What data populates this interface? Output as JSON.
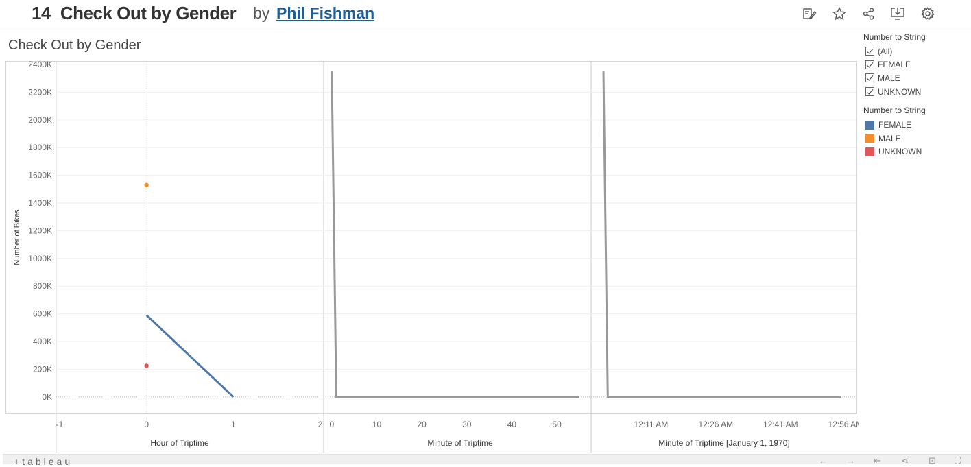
{
  "header": {
    "title": "14_Check Out by Gender",
    "by": "by",
    "author": "Phil Fishman"
  },
  "toolbar": {
    "icons": [
      "edit-icon",
      "star-icon",
      "share-icon",
      "download-icon",
      "settings-icon"
    ]
  },
  "sheet": {
    "title": "Check Out by Gender"
  },
  "filter": {
    "title": "Number to String",
    "items": [
      {
        "label": "(All)",
        "checked": true
      },
      {
        "label": "FEMALE",
        "checked": true
      },
      {
        "label": "MALE",
        "checked": true
      },
      {
        "label": "UNKNOWN",
        "checked": true
      }
    ]
  },
  "color_legend": {
    "title": "Number to String",
    "items": [
      {
        "label": "FEMALE",
        "color": "#4e79a7"
      },
      {
        "label": "MALE",
        "color": "#f28e2b"
      },
      {
        "label": "UNKNOWN",
        "color": "#e15759"
      }
    ]
  },
  "footer": {
    "logo": "+tableau"
  },
  "chart_data": [
    {
      "type": "line",
      "xlabel": "Hour of Triptime",
      "ylabel": "Number of Bikes",
      "xlim": [
        -1,
        2
      ],
      "x_ticks": [
        "-1",
        "0",
        "1",
        "2"
      ],
      "ylim": [
        -120,
        2420
      ],
      "y_ticks": [
        "0K",
        "200K",
        "400K",
        "600K",
        "800K",
        "1000K",
        "1200K",
        "1400K",
        "1600K",
        "1800K",
        "2000K",
        "2200K",
        "2400K"
      ],
      "grid": true,
      "series": [
        {
          "name": "FEMALE",
          "color": "#4e79a7",
          "points": [
            [
              0,
              590
            ],
            [
              1,
              0
            ]
          ]
        },
        {
          "name": "MALE",
          "color": "#f28e2b",
          "points": [
            [
              0,
              1530
            ]
          ]
        },
        {
          "name": "UNKNOWN",
          "color": "#e15759",
          "points": [
            [
              0,
              225
            ]
          ]
        }
      ]
    },
    {
      "type": "line",
      "xlabel": "Minute of Triptime",
      "xlim": [
        -1.8,
        57.6
      ],
      "x_ticks": [
        "0",
        "10",
        "20",
        "30",
        "40",
        "50"
      ],
      "series": [
        {
          "color": "#999999",
          "points": [
            [
              0,
              2350
            ],
            [
              1,
              0
            ],
            [
              55,
              0
            ]
          ]
        }
      ]
    },
    {
      "type": "line",
      "xlabel": "Minute of Triptime [January 1, 1970]",
      "xlim": [
        "12:00 AM",
        "1:00 AM"
      ],
      "x_ticks": [
        "12:11 AM",
        "12:26 AM",
        "12:41 AM",
        "12:56 AM"
      ],
      "series": [
        {
          "color": "#999999",
          "points": [
            [
              "12:00 AM",
              2350
            ],
            [
              "12:01 AM",
              0
            ],
            [
              "12:55 AM",
              0
            ]
          ]
        }
      ]
    }
  ]
}
